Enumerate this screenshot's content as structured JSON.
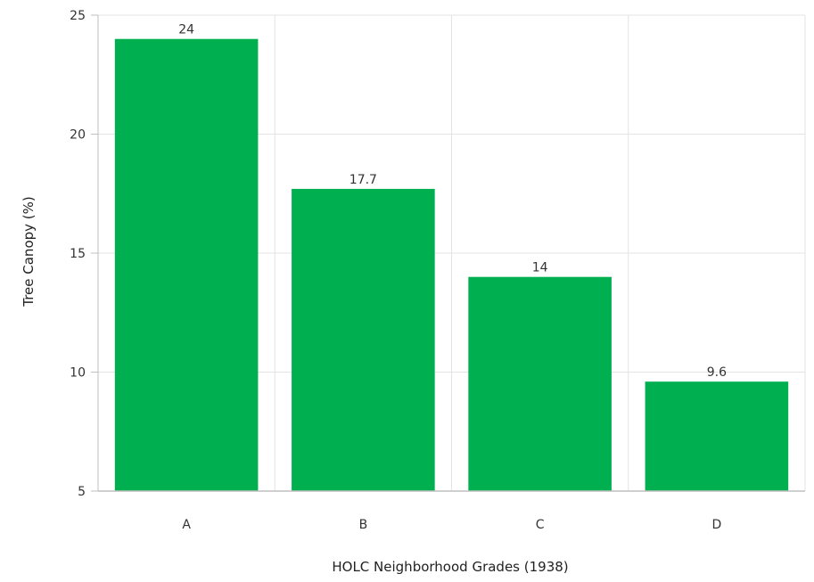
{
  "chart_data": {
    "type": "bar",
    "categories": [
      "A",
      "B",
      "C",
      "D"
    ],
    "values": [
      24,
      17.7,
      14,
      9.6
    ],
    "data_labels": [
      "24",
      "17.7",
      "14",
      "9.6"
    ],
    "title": "",
    "xlabel": "HOLC Neighborhood Grades (1938)",
    "ylabel": "Tree Canopy (%)",
    "ylim": [
      5,
      25
    ],
    "yticks": [
      5,
      10,
      15,
      20,
      25
    ],
    "grid": true,
    "bar_color": "#00b050",
    "grid_color": "#e3e3e3",
    "axis_color": "#bfbfbf"
  }
}
